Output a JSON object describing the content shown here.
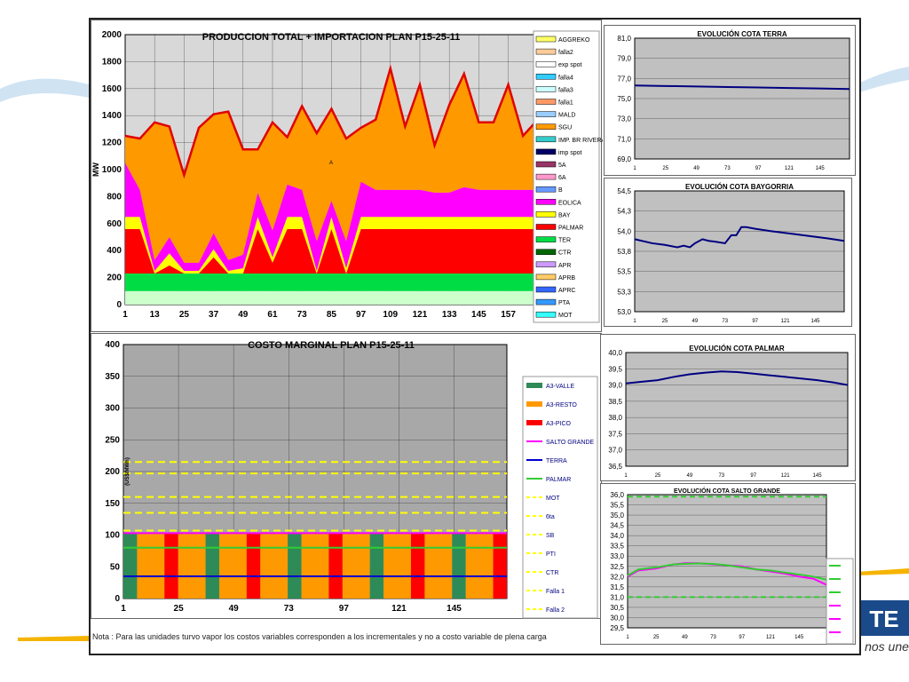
{
  "note": "Nota : Para las unidades turvo vapor los costos variables corresponden a los incrementales y no a costo variable de plena carga",
  "brand": {
    "tagline": "La energía que nos une",
    "mark": "TE"
  },
  "colors": {
    "grid_bg": "#c0c0c0",
    "accent_red": "#e00000",
    "orange": "#ff9900",
    "magenta": "#ff00ff",
    "green": "#22dd22",
    "yellow": "#ffff00"
  },
  "chart_data": [
    {
      "id": "produccion",
      "type": "area",
      "title": "PRODUCCION TOTAL + IMPORTACION PLAN    P15-25-11",
      "ylabel": "MW",
      "ylim": [
        0,
        2000
      ],
      "yticks": [
        0,
        200,
        400,
        600,
        800,
        1000,
        1200,
        1400,
        1600,
        1800,
        2000
      ],
      "xlim": [
        1,
        168
      ],
      "xticks": [
        1,
        13,
        25,
        37,
        49,
        61,
        73,
        85,
        97,
        109,
        121,
        133,
        145,
        157
      ],
      "x": [
        1,
        7,
        13,
        19,
        25,
        31,
        37,
        43,
        49,
        55,
        61,
        67,
        73,
        79,
        85,
        91,
        97,
        103,
        109,
        115,
        121,
        127,
        133,
        139,
        145,
        151,
        157,
        163,
        168
      ],
      "series": [
        {
          "name": "MOT",
          "color": "#ccffcc",
          "values": [
            100,
            100,
            100,
            100,
            100,
            100,
            100,
            100,
            100,
            100,
            100,
            100,
            100,
            100,
            100,
            100,
            100,
            100,
            100,
            100,
            100,
            100,
            100,
            100,
            100,
            100,
            100,
            100,
            100
          ]
        },
        {
          "name": "TER",
          "color": "#00dd44",
          "values": [
            130,
            130,
            130,
            130,
            130,
            130,
            130,
            130,
            130,
            130,
            130,
            130,
            130,
            130,
            130,
            130,
            130,
            130,
            130,
            130,
            130,
            130,
            130,
            130,
            130,
            130,
            130,
            130,
            130
          ]
        },
        {
          "name": "PALMAR",
          "color": "#ff0000",
          "values": [
            330,
            330,
            0,
            60,
            0,
            0,
            120,
            0,
            0,
            330,
            80,
            330,
            330,
            0,
            330,
            0,
            330,
            330,
            330,
            330,
            330,
            330,
            330,
            330,
            330,
            330,
            330,
            330,
            330
          ]
        },
        {
          "name": "BAY",
          "color": "#ffff00",
          "values": [
            90,
            90,
            20,
            90,
            20,
            20,
            60,
            20,
            40,
            90,
            40,
            90,
            90,
            20,
            90,
            40,
            90,
            90,
            90,
            90,
            90,
            90,
            90,
            90,
            90,
            90,
            90,
            90,
            90
          ]
        },
        {
          "name": "EOLICA",
          "color": "#ff00ff",
          "values": [
            400,
            200,
            80,
            120,
            60,
            60,
            120,
            80,
            100,
            180,
            200,
            240,
            200,
            220,
            120,
            200,
            260,
            200,
            200,
            200,
            200,
            180,
            180,
            220,
            200,
            200,
            200,
            200,
            200
          ]
        },
        {
          "name": "SGU",
          "color": "#ff9900",
          "values": [
            200,
            380,
            1020,
            820,
            650,
            1000,
            880,
            1100,
            780,
            320,
            800,
            350,
            620,
            800,
            680,
            760,
            400,
            520,
            900,
            470,
            780,
            350,
            650,
            840,
            500,
            500,
            780,
            400,
            500
          ]
        }
      ],
      "legend": [
        "AGGREKO",
        "falla2",
        "exp spot",
        "falla4",
        "falla3",
        "falla1",
        "MALD",
        "SGU",
        "IMP. BR RIVERA",
        "imp spot",
        "5A",
        "6A",
        "B",
        "EOLICA",
        "BAY",
        "PALMAR",
        "TER",
        "CTR",
        "APR",
        "APRB",
        "APRC",
        "PTA",
        "MOT"
      ],
      "legend_colors": [
        "#ffff66",
        "#ffcc99",
        "#ffffff",
        "#33ccff",
        "#ccffff",
        "#ff9966",
        "#99ccff",
        "#ff9900",
        "#33cccc",
        "#000066",
        "#993366",
        "#ff99cc",
        "#6699ff",
        "#ff00ff",
        "#ffff00",
        "#ff0000",
        "#00dd44",
        "#006600",
        "#cc99ff",
        "#ffcc66",
        "#3366ff",
        "#3399ff",
        "#33ffff"
      ],
      "marker_text": "A"
    },
    {
      "id": "costo",
      "type": "bar",
      "title": "COSTO MARGINAL PLAN    P15-25-11",
      "ylabel": "(US$/MWh)",
      "ylim": [
        0,
        400
      ],
      "yticks": [
        0,
        50,
        100,
        150,
        200,
        250,
        300,
        350,
        400
      ],
      "xlim": [
        1,
        168
      ],
      "xticks": [
        1,
        25,
        49,
        73,
        97,
        121,
        145
      ],
      "bar_levels": {
        "valle": 104,
        "resto": 104,
        "pico": 104
      },
      "bar_pattern": [
        "#2e8b57",
        "#ff9900",
        "#ff9900",
        "#ff0000",
        "#ff9900",
        "#ff9900",
        "#2e8b57",
        "#ff9900",
        "#ff9900",
        "#ff0000",
        "#ff9900",
        "#ff9900",
        "#2e8b57",
        "#ff9900",
        "#ff9900",
        "#ff0000",
        "#ff9900",
        "#ff9900",
        "#2e8b57",
        "#ff9900",
        "#ff9900",
        "#ff0000",
        "#ff9900",
        "#ff9900",
        "#2e8b57",
        "#ff9900",
        "#ff9900",
        "#ff0000"
      ],
      "lines": [
        {
          "name": "SALTO GRANDE",
          "value": 103,
          "color": "#ff00ff",
          "style": "solid"
        },
        {
          "name": "TERRA",
          "value": 35,
          "color": "#0000cc",
          "style": "solid"
        },
        {
          "name": "PALMAR",
          "value": 80,
          "color": "#33cc33",
          "style": "solid"
        },
        {
          "name": "MOT",
          "value": 215,
          "color": "#ffff00",
          "style": "dash"
        },
        {
          "name": "6ta",
          "value": 197,
          "color": "#ffff00",
          "style": "dash"
        },
        {
          "name": "SB",
          "value": 160,
          "color": "#ffff00",
          "style": "dash"
        },
        {
          "name": "PTI",
          "value": 135,
          "color": "#ffff00",
          "style": "dash"
        },
        {
          "name": "CTR",
          "value": 107,
          "color": "#ffff00",
          "style": "dash"
        }
      ],
      "legend": [
        "A3-VALLE",
        "A3-RESTO",
        "A3-PICO",
        "SALTO GRANDE",
        "TERRA",
        "PALMAR",
        "MOT",
        "6ta",
        "SB",
        "PTI",
        "CTR",
        "Falla 1",
        "Falla 2"
      ],
      "legend_colors": [
        "#2e8b57",
        "#ff9900",
        "#ff0000",
        "#ff00ff",
        "#0000cc",
        "#33cc33",
        "#ffff00",
        "#ffff00",
        "#ffff00",
        "#ffff00",
        "#ffff00",
        "#ffff00",
        "#ffff00"
      ],
      "legend_styles": [
        "box",
        "box",
        "box",
        "line",
        "line",
        "line",
        "dash",
        "dash",
        "dash",
        "dash",
        "dash",
        "dash",
        "dash"
      ]
    },
    {
      "id": "terra",
      "type": "line",
      "title": "EVOLUCIÓN COTA TERRA",
      "ylim": [
        69,
        81
      ],
      "yticks": [
        "69,0",
        "71,0",
        "73,0",
        "75,0",
        "77,0",
        "79,0",
        "81,0"
      ],
      "ytick_values": [
        69,
        71,
        73,
        75,
        77,
        79,
        81
      ],
      "xlim": [
        1,
        168
      ],
      "xticks": [
        1,
        25,
        49,
        73,
        97,
        121,
        145
      ],
      "series": [
        {
          "color": "#000080",
          "x": [
            1,
            25,
            49,
            73,
            97,
            121,
            145,
            168
          ],
          "y": [
            76.3,
            76.25,
            76.2,
            76.15,
            76.1,
            76.05,
            76.0,
            75.95
          ]
        }
      ]
    },
    {
      "id": "baygorria",
      "type": "line",
      "title": "EVOLUCIÓN COTA BAYGORRIA",
      "ylim": [
        53,
        54.5
      ],
      "yticks": [
        "53,0",
        "53,3",
        "53,5",
        "53,8",
        "54,0",
        "54,3",
        "54,5"
      ],
      "ytick_values": [
        53.0,
        53.25,
        53.5,
        53.75,
        54.0,
        54.25,
        54.5
      ],
      "xlim": [
        1,
        168
      ],
      "xticks": [
        1,
        25,
        49,
        73,
        97,
        121,
        145
      ],
      "series": [
        {
          "color": "#000080",
          "x": [
            1,
            15,
            25,
            35,
            40,
            45,
            49,
            55,
            60,
            65,
            73,
            78,
            82,
            86,
            90,
            97,
            110,
            125,
            140,
            155,
            168
          ],
          "y": [
            53.9,
            53.85,
            53.83,
            53.8,
            53.82,
            53.8,
            53.85,
            53.9,
            53.88,
            53.87,
            53.85,
            53.95,
            53.95,
            54.05,
            54.05,
            54.03,
            54.0,
            53.97,
            53.94,
            53.91,
            53.88
          ]
        }
      ]
    },
    {
      "id": "palmar",
      "type": "line",
      "title": "EVOLUCIÓN COTA PALMAR",
      "ylim": [
        36.5,
        40
      ],
      "yticks": [
        "36,5",
        "37,0",
        "37,5",
        "38,0",
        "38,5",
        "39,0",
        "39,5",
        "40,0"
      ],
      "ytick_values": [
        36.5,
        37.0,
        37.5,
        38.0,
        38.5,
        39.0,
        39.5,
        40.0
      ],
      "xlim": [
        1,
        168
      ],
      "xticks": [
        1,
        25,
        49,
        73,
        97,
        121,
        145
      ],
      "series": [
        {
          "color": "#000080",
          "x": [
            1,
            13,
            25,
            37,
            49,
            61,
            73,
            85,
            97,
            109,
            121,
            133,
            145,
            157,
            168
          ],
          "y": [
            39.05,
            39.1,
            39.15,
            39.25,
            39.33,
            39.38,
            39.42,
            39.4,
            39.35,
            39.3,
            39.25,
            39.2,
            39.15,
            39.08,
            39.0
          ]
        }
      ]
    },
    {
      "id": "saltogrande",
      "type": "line",
      "title": "EVOLUCIÓN COTA SALTO GRANDE",
      "ylim": [
        29.5,
        36
      ],
      "yticks": [
        "29,5",
        "30,0",
        "30,5",
        "31,0",
        "31,5",
        "32,0",
        "32,5",
        "33,0",
        "33,5",
        "34,0",
        "34,5",
        "35,0",
        "35,5",
        "36,0"
      ],
      "ytick_values": [
        29.5,
        30,
        30.5,
        31,
        31.5,
        32,
        32.5,
        33,
        33.5,
        34,
        34.5,
        35,
        35.5,
        36
      ],
      "xlim": [
        1,
        168
      ],
      "xticks": [
        1,
        25,
        49,
        73,
        97,
        121,
        145
      ],
      "series": [
        {
          "color": "#ff00ff",
          "style": "solid",
          "x": [
            1,
            10,
            25,
            40,
            49,
            60,
            73,
            85,
            97,
            109,
            121,
            133,
            145,
            157,
            168
          ],
          "y": [
            32.0,
            32.3,
            32.4,
            32.6,
            32.65,
            32.65,
            32.6,
            32.55,
            32.5,
            32.35,
            32.25,
            32.15,
            32.0,
            31.9,
            31.6
          ]
        },
        {
          "color": "#33cc33",
          "style": "solid",
          "x": [
            1,
            10,
            25,
            40,
            49,
            60,
            73,
            85,
            97,
            109,
            121,
            133,
            145,
            157,
            168
          ],
          "y": [
            32.05,
            32.35,
            32.45,
            32.6,
            32.62,
            32.64,
            32.62,
            32.55,
            32.45,
            32.35,
            32.3,
            32.2,
            32.1,
            32.0,
            31.85
          ]
        },
        {
          "color": "#33cc33",
          "style": "dash",
          "x": [
            1,
            168
          ],
          "y": [
            35.9,
            35.9
          ]
        },
        {
          "color": "#33cc33",
          "style": "dash",
          "x": [
            1,
            168
          ],
          "y": [
            31.0,
            31.0
          ]
        }
      ],
      "legend_colors": [
        "#33cc33",
        "#33cc33",
        "#33cc33",
        "#ff00ff",
        "#ff00ff",
        "#ff00ff"
      ]
    }
  ]
}
